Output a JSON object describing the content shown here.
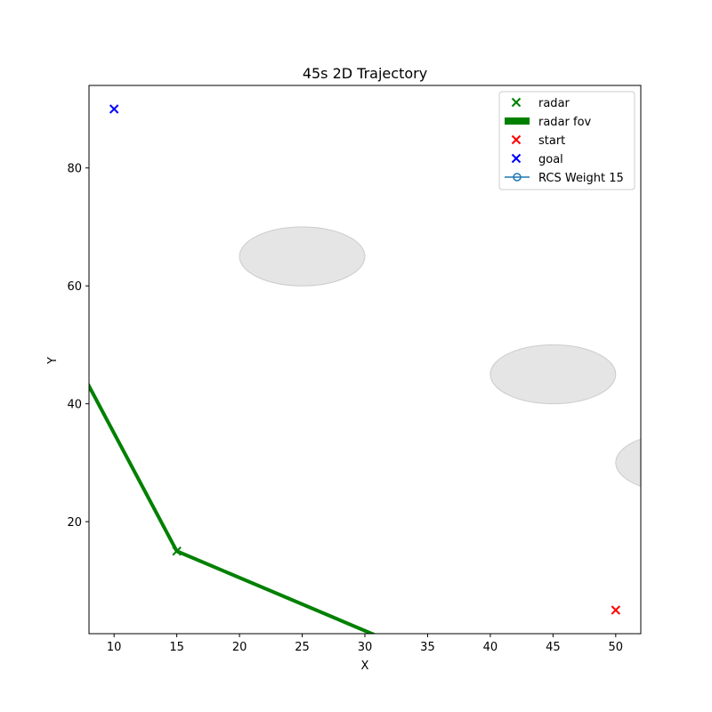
{
  "chart_data": {
    "type": "scatter",
    "title": "45s 2D Trajectory",
    "xlabel": "X",
    "ylabel": "Y",
    "xlim": [
      8,
      52
    ],
    "ylim": [
      1,
      94
    ],
    "xticks": [
      10,
      15,
      20,
      25,
      30,
      35,
      40,
      45,
      50
    ],
    "yticks": [
      20,
      40,
      60,
      80
    ],
    "grid": false,
    "legend_placement": "upper right",
    "series": [
      {
        "name": "radar",
        "kind": "marker",
        "marker": "x",
        "color": "#008000",
        "points": [
          [
            15,
            15
          ]
        ]
      },
      {
        "name": "radar fov",
        "kind": "line",
        "color": "#008000",
        "points": [
          [
            0,
            75
          ],
          [
            15,
            15
          ],
          [
            35,
            -3
          ]
        ]
      },
      {
        "name": "start",
        "kind": "marker",
        "marker": "x",
        "color": "#ff0000",
        "points": [
          [
            50,
            5
          ]
        ]
      },
      {
        "name": "goal",
        "kind": "marker",
        "marker": "x",
        "color": "#0000ff",
        "points": [
          [
            10,
            90
          ]
        ]
      },
      {
        "name": "RCS Weight 15",
        "kind": "line-marker",
        "marker": "o",
        "color": "#1f77b4",
        "points": []
      }
    ],
    "obstacles": [
      {
        "cx": 25,
        "cy": 65,
        "rx": 5,
        "ry": 5,
        "color": "#e5e5e5"
      },
      {
        "cx": 45,
        "cy": 45,
        "rx": 5,
        "ry": 5,
        "color": "#e5e5e5"
      },
      {
        "cx": 55,
        "cy": 30,
        "rx": 5,
        "ry": 5,
        "color": "#e5e5e5"
      }
    ]
  }
}
